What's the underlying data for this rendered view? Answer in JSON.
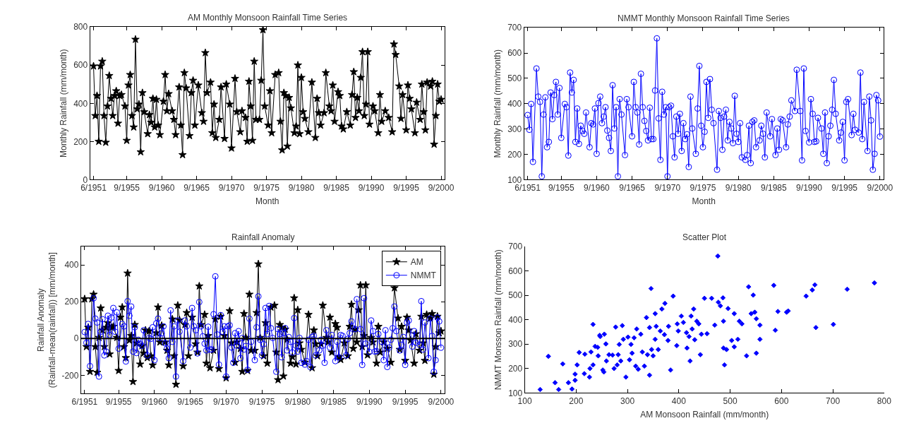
{
  "chart_data": [
    {
      "type": "line",
      "title": "AM Monthly Monsoon Rainfall Time Series",
      "xlabel": "Month",
      "ylabel": "Monthly Rainfall (mm/month)",
      "categories": [
        "6/1951",
        null,
        null,
        null,
        null,
        null,
        null,
        null,
        null,
        null,
        null,
        null,
        null,
        null,
        null,
        null,
        null,
        null,
        null,
        "9/1955",
        null,
        null,
        null,
        null,
        null,
        null,
        null,
        null,
        null,
        null,
        null,
        null,
        null,
        null,
        null,
        null,
        null,
        null,
        null,
        "9/1960",
        null,
        null,
        null,
        null,
        null,
        null,
        null,
        null,
        null,
        null,
        null,
        null,
        null,
        null,
        null,
        null,
        null,
        null,
        null,
        "9/1965",
        null,
        null,
        null,
        null,
        null,
        null,
        null,
        null,
        null,
        null,
        null,
        null,
        null,
        null,
        null,
        null,
        null,
        null,
        null,
        "9/1970",
        null,
        null,
        null,
        null,
        null,
        null,
        null,
        null,
        null,
        null,
        null,
        null,
        null,
        null,
        null,
        null,
        null,
        null,
        null,
        "9/1975",
        null,
        null,
        null,
        null,
        null,
        null,
        null,
        null,
        null,
        null,
        null,
        null,
        null,
        null,
        null,
        null,
        null,
        null,
        null,
        "9/1980",
        null,
        null,
        null,
        null,
        null,
        null,
        null,
        null,
        null,
        null,
        null,
        null,
        null,
        null,
        null,
        null,
        null,
        null,
        null,
        "9/1985",
        null,
        null,
        null,
        null,
        null,
        null,
        null,
        null,
        null,
        null,
        null,
        null,
        null,
        null,
        null,
        null,
        null,
        null,
        null,
        "9/1990",
        null,
        null,
        null,
        null,
        null,
        null,
        null,
        null,
        null,
        null,
        null,
        null,
        null,
        null,
        null,
        null,
        null,
        null,
        null,
        "9/1995",
        null,
        null,
        null,
        null,
        null,
        null,
        null,
        null,
        null,
        null,
        null,
        null,
        null,
        null,
        null,
        null,
        null,
        null,
        null,
        "9/2000"
      ],
      "ylim": [
        0,
        800
      ],
      "yticks": [
        0,
        200,
        400,
        600,
        800
      ],
      "grid": false,
      "legend": false,
      "series": [
        {
          "color": "#000000",
          "marker": "star",
          "values": [
            595,
            335,
            440,
            200,
            595,
            620,
            335,
            195,
            385,
            545,
            425,
            335,
            440,
            465,
            295,
            440,
            445,
            null,
            385,
            205,
            495,
            550,
            335,
            275,
            735,
            370,
            395,
            145,
            455,
            355,
            null,
            240,
            340,
            300,
            425,
            275,
            420,
            285,
            235,
            null,
            410,
            550,
            360,
            450,
            null,
            360,
            315,
            235,
            null,
            485,
            285,
            130,
            560,
            480,
            null,
            230,
            455,
            520,
            285,
            null,
            495,
            null,
            350,
            305,
            665,
            455,
            null,
            510,
            245,
            395,
            220,
            null,
            315,
            485,
            null,
            215,
            500,
            null,
            395,
            165,
            null,
            530,
            355,
            null,
            250,
            360,
            null,
            325,
            200,
            515,
            385,
            205,
            620,
            315,
            null,
            315,
            520,
            785,
            385,
            null,
            285,
            465,
            245,
            null,
            550,
            null,
            560,
            305,
            155,
            455,
            440,
            175,
            430,
            375,
            null,
            245,
            280,
            600,
            240,
            535,
            355,
            320,
            null,
            250,
            null,
            510,
            null,
            220,
            425,
            350,
            285,
            null,
            350,
            560,
            null,
            385,
            360,
            495,
            305,
            null,
            460,
            440,
            280,
            265,
            null,
            355,
            null,
            285,
            445,
            565,
            325,
            430,
            360,
            535,
            670,
            335,
            395,
            670,
            290,
            null,
            385,
            360,
            null,
            245,
            445,
            305,
            null,
            360,
            null,
            325,
            null,
            250,
            710,
            655,
            null,
            490,
            320,
            445,
            null,
            260,
            495,
            425,
            370,
            null,
            245,
            405,
            null,
            315,
            500,
            355,
            260,
            510,
            null,
            490,
            515,
            185,
            335,
            500,
            410,
            420
          ]
        }
      ]
    },
    {
      "type": "line",
      "title": "NMMT Monthly Monsoon Rainfall Time Series",
      "xlabel": "Month",
      "ylabel": "Monthly Rainfall (mm/month)",
      "categories": [
        "6/1951",
        null,
        null,
        null,
        null,
        null,
        null,
        null,
        null,
        null,
        null,
        null,
        null,
        null,
        null,
        null,
        null,
        null,
        null,
        "9/1955",
        null,
        null,
        null,
        null,
        null,
        null,
        null,
        null,
        null,
        null,
        null,
        null,
        null,
        null,
        null,
        null,
        null,
        null,
        null,
        "9/1960",
        null,
        null,
        null,
        null,
        null,
        null,
        null,
        null,
        null,
        null,
        null,
        null,
        null,
        null,
        null,
        null,
        null,
        null,
        null,
        "9/1965",
        null,
        null,
        null,
        null,
        null,
        null,
        null,
        null,
        null,
        null,
        null,
        null,
        null,
        null,
        null,
        null,
        null,
        null,
        null,
        "9/1970",
        null,
        null,
        null,
        null,
        null,
        null,
        null,
        null,
        null,
        null,
        null,
        null,
        null,
        null,
        null,
        null,
        null,
        null,
        null,
        "9/1975",
        null,
        null,
        null,
        null,
        null,
        null,
        null,
        null,
        null,
        null,
        null,
        null,
        null,
        null,
        null,
        null,
        null,
        null,
        null,
        "9/1980",
        null,
        null,
        null,
        null,
        null,
        null,
        null,
        null,
        null,
        null,
        null,
        null,
        null,
        null,
        null,
        null,
        null,
        null,
        null,
        "9/1985",
        null,
        null,
        null,
        null,
        null,
        null,
        null,
        null,
        null,
        null,
        null,
        null,
        null,
        null,
        null,
        null,
        null,
        null,
        null,
        "9/1990",
        null,
        null,
        null,
        null,
        null,
        null,
        null,
        null,
        null,
        null,
        null,
        null,
        null,
        null,
        null,
        null,
        null,
        null,
        null,
        "9/1995",
        null,
        null,
        null,
        null,
        null,
        null,
        null,
        null,
        null,
        null,
        null,
        null,
        null,
        null,
        null,
        null,
        null,
        null,
        null,
        "9/2000"
      ],
      "ylim": [
        100,
        700
      ],
      "yticks": [
        100,
        200,
        300,
        400,
        500,
        600,
        700
      ],
      "grid": false,
      "legend": false,
      "series": [
        {
          "color": "#0000ff",
          "marker": "circle",
          "values": [
            355,
            297,
            399,
            170,
            null,
            539,
            428,
            407,
            113,
            357,
            425,
            228,
            249,
            444,
            339,
            434,
            486,
            357,
            462,
            265,
            null,
            399,
            386,
            195,
            523,
            444,
            494,
            249,
            381,
            241,
            313,
            292,
            281,
            365,
            null,
            228,
            323,
            318,
            381,
            202,
            402,
            428,
            323,
            349,
            386,
            294,
            265,
            213,
            473,
            302,
            386,
            113,
            418,
            357,
            null,
            197,
            418,
            386,
            null,
            271,
            486,
            386,
            365,
            239,
            518,
            386,
            332,
            292,
            255,
            384,
            260,
            260,
            452,
            658,
            342,
            178,
            447,
            357,
            386,
            113,
            386,
            392,
            271,
            188,
            349,
            281,
            360,
            213,
            323,
            260,
            279,
            150,
            428,
            302,
            null,
            202,
            381,
            549,
            313,
            228,
            289,
            486,
            344,
            497,
            376,
            323,
            null,
            139,
            371,
            344,
            218,
            349,
            376,
            255,
            328,
            302,
            244,
            431,
            281,
            249,
            323,
            188,
            null,
            178,
            197,
            313,
            165,
            328,
            334,
            228,
            null,
            255,
            313,
            281,
            188,
            365,
            null,
            271,
            339,
            null,
            197,
            302,
            218,
            339,
            334,
            null,
            228,
            318,
            349,
            413,
            null,
            371,
            534,
            null,
            371,
            176,
            539,
            292,
            null,
            247,
            418,
            360,
            249,
            251,
            344,
            null,
            302,
            202,
            365,
            165,
            271,
            313,
            376,
            494,
            360,
            null,
            255,
            286,
            328,
            176,
            407,
            418,
            null,
            276,
            360,
            297,
            null,
            286,
            523,
            260,
            407,
            null,
            213,
            428,
            334,
            139,
            202,
            434,
            413,
            270
          ]
        }
      ]
    },
    {
      "type": "line",
      "title": "Rainfall Anomaly",
      "ylabel": "Rainfall Anomaly\n(Rainfall-mean(rainfall)) [mm/month]",
      "categories": [
        "6/1951",
        null,
        null,
        null,
        null,
        null,
        null,
        null,
        null,
        null,
        null,
        null,
        null,
        null,
        null,
        null,
        null,
        null,
        null,
        "9/1955",
        null,
        null,
        null,
        null,
        null,
        null,
        null,
        null,
        null,
        null,
        null,
        null,
        null,
        null,
        null,
        null,
        null,
        null,
        null,
        "9/1960",
        null,
        null,
        null,
        null,
        null,
        null,
        null,
        null,
        null,
        null,
        null,
        null,
        null,
        null,
        null,
        null,
        null,
        null,
        null,
        "9/1965",
        null,
        null,
        null,
        null,
        null,
        null,
        null,
        null,
        null,
        null,
        null,
        null,
        null,
        null,
        null,
        null,
        null,
        null,
        null,
        "9/1970",
        null,
        null,
        null,
        null,
        null,
        null,
        null,
        null,
        null,
        null,
        null,
        null,
        null,
        null,
        null,
        null,
        null,
        null,
        null,
        "9/1975",
        null,
        null,
        null,
        null,
        null,
        null,
        null,
        null,
        null,
        null,
        null,
        null,
        null,
        null,
        null,
        null,
        null,
        null,
        null,
        "9/1980",
        null,
        null,
        null,
        null,
        null,
        null,
        null,
        null,
        null,
        null,
        null,
        null,
        null,
        null,
        null,
        null,
        null,
        null,
        null,
        "9/1985",
        null,
        null,
        null,
        null,
        null,
        null,
        null,
        null,
        null,
        null,
        null,
        null,
        null,
        null,
        null,
        null,
        null,
        null,
        null,
        "9/1990",
        null,
        null,
        null,
        null,
        null,
        null,
        null,
        null,
        null,
        null,
        null,
        null,
        null,
        null,
        null,
        null,
        null,
        null,
        null,
        "9/1995",
        null,
        null,
        null,
        null,
        null,
        null,
        null,
        null,
        null,
        null,
        null,
        null,
        null,
        null,
        null,
        null,
        null,
        null,
        null,
        "9/2000"
      ],
      "ylim": [
        -300,
        500
      ],
      "yticks": [
        -200,
        0,
        200,
        400
      ],
      "grid": false,
      "legend": "top right",
      "ref_lines": [
        {
          "axis": "y",
          "value": 0,
          "color": "#000000"
        }
      ],
      "series": [
        {
          "name": "AM",
          "color": "#000000",
          "marker": "star",
          "values": [
            215,
            -45,
            60,
            -180,
            215,
            240,
            -45,
            -185,
            5,
            165,
            45,
            -45,
            60,
            85,
            -85,
            60,
            65,
            null,
            5,
            -175,
            115,
            170,
            -45,
            -105,
            355,
            -10,
            15,
            -235,
            75,
            -25,
            null,
            -140,
            -40,
            -80,
            45,
            -105,
            40,
            -95,
            -145,
            null,
            30,
            170,
            -20,
            70,
            null,
            -20,
            -65,
            -145,
            null,
            105,
            -95,
            -250,
            180,
            100,
            null,
            -150,
            75,
            140,
            -95,
            null,
            115,
            null,
            -30,
            -75,
            285,
            75,
            null,
            130,
            -135,
            15,
            -160,
            null,
            -65,
            105,
            null,
            -165,
            120,
            null,
            15,
            -215,
            null,
            150,
            -25,
            null,
            -130,
            -20,
            null,
            -55,
            -180,
            135,
            5,
            -175,
            240,
            -65,
            null,
            -65,
            140,
            405,
            5,
            null,
            -95,
            85,
            -135,
            null,
            170,
            null,
            180,
            -75,
            -225,
            75,
            60,
            -205,
            50,
            -5,
            null,
            -135,
            -100,
            220,
            -140,
            155,
            -25,
            -60,
            null,
            -130,
            null,
            130,
            null,
            -160,
            45,
            -30,
            -95,
            null,
            -30,
            180,
            null,
            5,
            -20,
            115,
            -75,
            null,
            80,
            60,
            -100,
            -115,
            null,
            -25,
            null,
            -95,
            65,
            185,
            -55,
            50,
            -20,
            155,
            290,
            -45,
            15,
            290,
            -90,
            null,
            5,
            -20,
            null,
            -135,
            65,
            -75,
            null,
            -20,
            null,
            -55,
            null,
            -130,
            null,
            275,
            null,
            110,
            -60,
            65,
            null,
            -120,
            115,
            45,
            -10,
            null,
            -135,
            25,
            null,
            -65,
            120,
            -25,
            -120,
            130,
            null,
            110,
            135,
            -195,
            -45,
            120,
            30,
            40
          ]
        },
        {
          "name": "NMMT",
          "color": "#0000ff",
          "marker": "circle",
          "values": [
            35,
            -23,
            79,
            -150,
            null,
            219,
            108,
            87,
            -207,
            37,
            105,
            -92,
            -71,
            124,
            19,
            114,
            166,
            37,
            142,
            -55,
            null,
            79,
            66,
            -125,
            203,
            124,
            174,
            -71,
            61,
            -79,
            -7,
            -28,
            -39,
            45,
            null,
            -92,
            3,
            -2,
            61,
            -118,
            82,
            108,
            3,
            29,
            66,
            -26,
            -55,
            -107,
            153,
            -18,
            66,
            -207,
            98,
            37,
            null,
            -123,
            98,
            66,
            null,
            -49,
            166,
            66,
            45,
            -81,
            198,
            66,
            12,
            -28,
            -65,
            64,
            -60,
            -60,
            132,
            338,
            22,
            -142,
            127,
            37,
            66,
            -207,
            66,
            72,
            -49,
            -132,
            29,
            -39,
            40,
            -107,
            3,
            -60,
            -41,
            -170,
            108,
            -18,
            null,
            -118,
            61,
            229,
            -7,
            -92,
            -31,
            166,
            24,
            177,
            56,
            3,
            null,
            -181,
            51,
            24,
            -102,
            29,
            56,
            -65,
            8,
            -18,
            -76,
            111,
            -39,
            -71,
            3,
            -132,
            null,
            -142,
            -123,
            -7,
            -155,
            8,
            14,
            -92,
            null,
            -65,
            -7,
            -39,
            -132,
            45,
            null,
            -49,
            19,
            null,
            -123,
            -18,
            -102,
            19,
            14,
            null,
            -92,
            -2,
            29,
            93,
            null,
            51,
            214,
            null,
            51,
            -144,
            219,
            -28,
            null,
            -73,
            98,
            40,
            -71,
            -69,
            24,
            null,
            -18,
            -118,
            45,
            -155,
            -49,
            -7,
            56,
            174,
            40,
            null,
            -65,
            -34,
            8,
            -144,
            87,
            98,
            null,
            -44,
            40,
            -23,
            null,
            -34,
            203,
            -60,
            87,
            null,
            -107,
            108,
            14,
            -181,
            -118,
            114,
            93,
            -50
          ]
        }
      ]
    },
    {
      "type": "scatter",
      "title": "Scatter Plot",
      "xlabel": "AM Monsoon Rainfall (mm/month)",
      "ylabel": "NMMT Monsson Rainfall (mm/month)",
      "xlim": [
        100,
        800
      ],
      "xticks": [
        100,
        200,
        300,
        400,
        500,
        600,
        700,
        800
      ],
      "ylim": [
        100,
        700
      ],
      "yticks": [
        100,
        200,
        300,
        400,
        500,
        600,
        700
      ],
      "grid": false,
      "legend": false,
      "series": [
        {
          "color": "#0000ff",
          "marker": "diamond",
          "x": [
            130,
            146,
            159,
            166,
            174,
            185,
            192,
            198,
            198,
            202,
            206,
            216,
            217,
            226,
            227,
            229,
            233,
            233,
            237,
            242,
            243,
            246,
            247,
            252,
            254,
            255,
            258,
            259,
            264,
            271,
            274,
            277,
            280,
            282,
            284,
            287,
            290,
            292,
            297,
            301,
            304,
            307,
            309,
            313,
            316,
            318,
            321,
            326,
            329,
            333,
            337,
            339,
            343,
            343,
            346,
            347,
            350,
            354,
            354,
            356,
            360,
            364,
            367,
            372,
            373,
            379,
            380,
            384,
            389,
            396,
            397,
            399,
            405,
            409,
            415,
            416,
            420,
            422,
            424,
            426,
            429,
            431,
            435,
            439,
            442,
            444,
            450,
            455,
            464,
            470,
            476,
            477,
            481,
            486,
            487,
            487,
            489,
            493,
            496,
            503,
            508,
            508,
            515,
            518,
            523,
            532,
            536,
            541,
            545,
            548,
            551,
            551,
            558,
            558,
            585,
            588,
            593,
            610,
            613,
            648,
            660,
            665,
            667,
            701,
            728,
            781
          ],
          "values": [
            114,
            250,
            142,
            114,
            219,
            142,
            116,
            152,
            177,
            215,
            266,
            179,
            259,
            165,
            200,
            268,
            215,
            381,
            291,
            287,
            252,
            336,
            331,
            194,
            186,
            341,
            301,
            231,
            257,
            255,
            200,
            370,
            215,
            257,
            299,
            231,
            376,
            320,
            165,
            329,
            236,
            299,
            263,
            326,
            210,
            362,
            197,
            341,
            268,
            210,
            409,
            257,
            173,
            368,
            528,
            278,
            252,
            320,
            425,
            373,
            278,
            354,
            444,
            339,
            467,
            315,
            373,
            194,
            497,
            294,
            383,
            354,
            415,
            389,
            347,
            284,
            331,
            231,
            415,
            362,
            444,
            318,
            394,
            383,
            257,
            341,
            488,
            343,
            488,
            378,
            661,
            472,
            457,
            490,
            394,
            284,
            215,
            278,
            446,
            315,
            425,
            289,
            320,
            394,
            383,
            252,
            535,
            425,
            501,
            431,
            404,
            263,
            378,
            320,
            541,
            357,
            434,
            431,
            436,
            497,
            522,
            543,
            368,
            381,
            525,
            551
          ]
        }
      ]
    }
  ]
}
